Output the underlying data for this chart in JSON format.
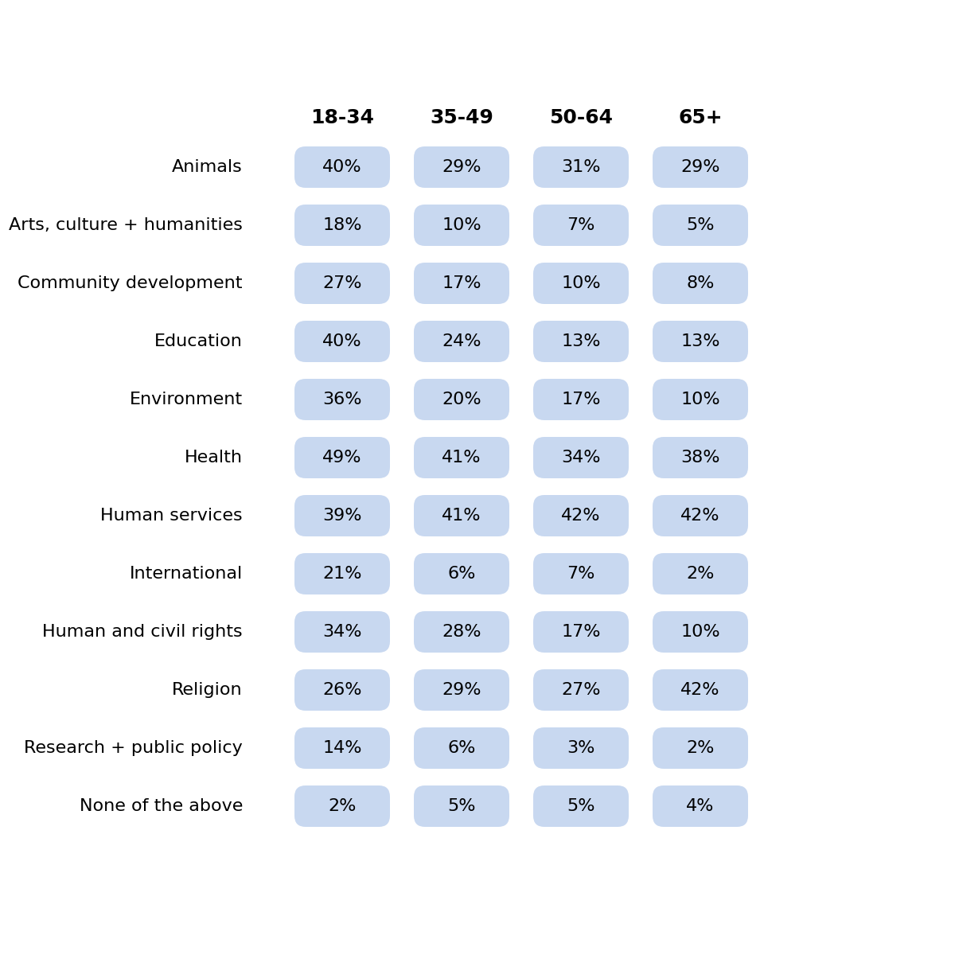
{
  "age_groups": [
    "18-34",
    "35-49",
    "50-64",
    "65+"
  ],
  "categories": [
    "Animals",
    "Arts, culture + humanities",
    "Community development",
    "Education",
    "Environment",
    "Health",
    "Human services",
    "International",
    "Human and civil rights",
    "Religion",
    "Research + public policy",
    "None of the above"
  ],
  "values": [
    [
      40,
      29,
      31,
      29
    ],
    [
      18,
      10,
      7,
      5
    ],
    [
      27,
      17,
      10,
      8
    ],
    [
      40,
      24,
      13,
      13
    ],
    [
      36,
      20,
      17,
      10
    ],
    [
      49,
      41,
      34,
      38
    ],
    [
      39,
      41,
      42,
      42
    ],
    [
      21,
      6,
      7,
      2
    ],
    [
      34,
      28,
      17,
      10
    ],
    [
      26,
      29,
      27,
      42
    ],
    [
      14,
      6,
      3,
      2
    ],
    [
      2,
      5,
      5,
      4
    ]
  ],
  "pill_color": "#C8D8F0",
  "text_color": "#000000",
  "header_color": "#000000",
  "background_color": "#FFFFFF",
  "category_fontsize": 16,
  "header_fontsize": 18,
  "value_fontsize": 16
}
